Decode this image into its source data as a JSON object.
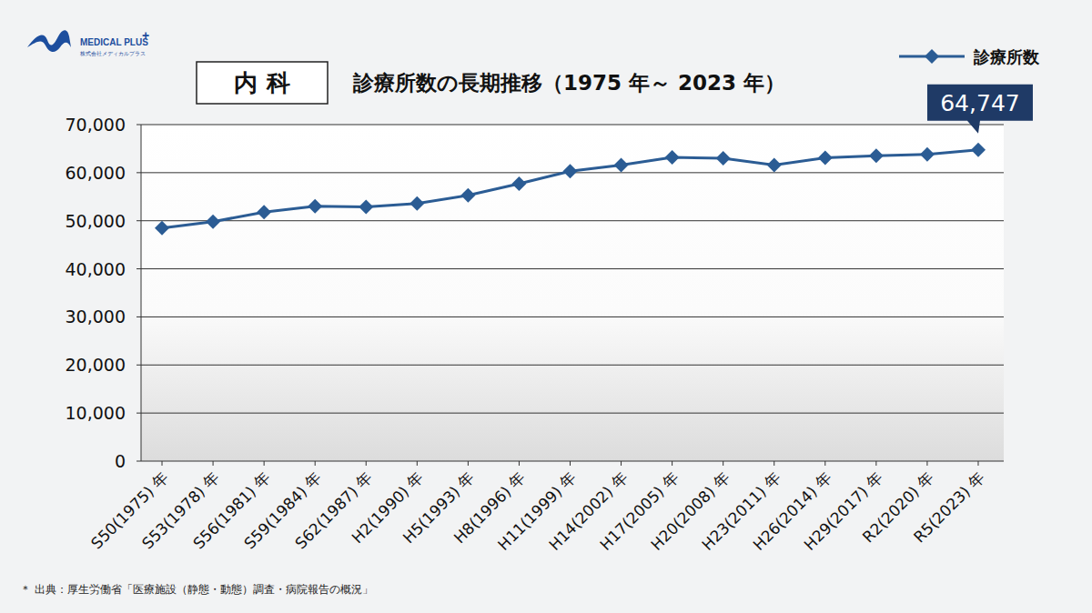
{
  "chart_data": {
    "type": "line",
    "logo": {
      "name": "MEDICAL PLUS",
      "plus": "+",
      "company": "株式会社メディカルプラス"
    },
    "badge": "内 科",
    "title": "診療所数の長期推移（1975 年～ 2023 年）",
    "categories": [
      "S50(1975) 年",
      "S53(1978) 年",
      "S56(1981) 年",
      "S59(1984) 年",
      "S62(1987) 年",
      "H2(1990) 年",
      "H5(1993) 年",
      "H8(1996) 年",
      "H11(1999) 年",
      "H14(2002) 年",
      "H17(2005) 年",
      "H20(2008) 年",
      "H23(2011) 年",
      "H26(2014) 年",
      "H29(2017) 年",
      "R2(2020) 年",
      "R5(2023) 年"
    ],
    "series": [
      {
        "name": "診療所数",
        "color": "#2b5c94",
        "marker": "diamond",
        "values": [
          48500,
          49800,
          51800,
          53000,
          52900,
          53600,
          55300,
          57700,
          60300,
          61600,
          63200,
          63000,
          61600,
          63100,
          63500,
          63800,
          64747
        ]
      }
    ],
    "annotation": "64,747",
    "ylim": [
      0,
      70000
    ],
    "yticks": [
      0,
      {
        "value": 10000,
        "label": "10,000"
      },
      {
        "value": 20000,
        "label": "20,000"
      },
      {
        "value": 30000,
        "label": "30,000"
      },
      {
        "value": 40000,
        "label": "40,000"
      },
      {
        "value": 50000,
        "label": "50,000"
      },
      {
        "value": 60000,
        "label": "60,000"
      },
      {
        "value": 70000,
        "label": "70,000"
      }
    ],
    "grid": true,
    "legend": "top-right",
    "source": "＊ 出典：厚生労働省「医療施設（静態・動態）調査・病院報告の概況」"
  }
}
